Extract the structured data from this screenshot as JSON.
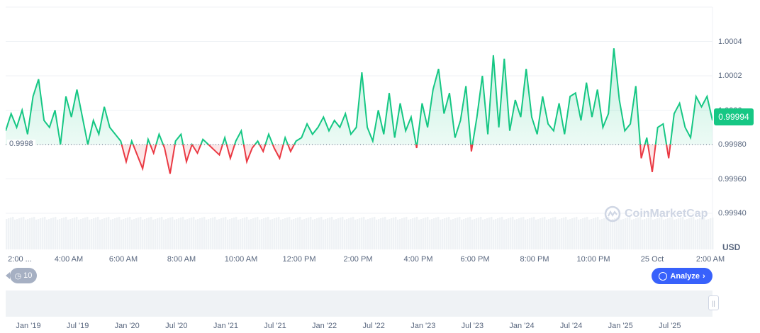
{
  "chart_data": {
    "type": "line",
    "currency": "USD",
    "baseline_price": 0.9998,
    "current_price": "0.99994",
    "ylim": [
      0.99928,
      1.00048
    ],
    "y_ticks": [
      "1.0004",
      "1.0002",
      "1.0000",
      "0.99980",
      "0.99960",
      "0.99940"
    ],
    "baseline_label": "0.9998",
    "x_ticks": [
      "2:00 ...",
      "4:00 AM",
      "6:00 AM",
      "8:00 AM",
      "10:00 AM",
      "12:00 PM",
      "2:00 PM",
      "4:00 PM",
      "6:00 PM",
      "8:00 PM",
      "10:00 PM",
      "25 Oct",
      "2:00 AM"
    ],
    "grid": true,
    "colors": {
      "up": "#16c784",
      "down": "#ea3943",
      "badge": "#16c784"
    },
    "values": [
      0.99988,
      0.99998,
      0.9999,
      1.0,
      0.99986,
      1.00008,
      1.00018,
      0.99994,
      0.9999,
      1.0,
      0.9998,
      1.00008,
      0.99996,
      1.00012,
      0.99996,
      0.9998,
      0.99994,
      0.99986,
      1.00002,
      0.9999,
      0.99986,
      0.99982,
      0.9997,
      0.99982,
      0.99974,
      0.99966,
      0.99983,
      0.99975,
      0.99986,
      0.99978,
      0.99963,
      0.99982,
      0.99986,
      0.9997,
      0.9998,
      0.99975,
      0.99983,
      0.9998,
      0.99977,
      0.99974,
      0.99984,
      0.99972,
      0.99982,
      0.99988,
      0.9997,
      0.99978,
      0.99982,
      0.99976,
      0.99986,
      0.99978,
      0.99972,
      0.99984,
      0.99976,
      0.99982,
      0.99984,
      0.99992,
      0.99986,
      0.9999,
      0.99996,
      0.99988,
      0.99994,
      0.9999,
      0.99998,
      0.99986,
      0.9999,
      1.00022,
      0.9999,
      0.99982,
      1.0,
      0.99986,
      1.0001,
      0.99984,
      1.00004,
      0.99988,
      0.99996,
      0.99978,
      1.00004,
      0.9999,
      1.00012,
      1.00024,
      0.99998,
      1.0001,
      0.99984,
      0.99994,
      1.00014,
      0.99976,
      0.99996,
      1.0002,
      0.99986,
      1.00032,
      0.9999,
      1.0003,
      0.99988,
      1.00006,
      0.99996,
      1.00024,
      0.99996,
      0.99986,
      1.00008,
      0.99992,
      0.99988,
      1.00004,
      0.99986,
      1.00008,
      1.0001,
      0.99994,
      1.00016,
      0.99996,
      1.00012,
      0.9999,
      0.99998,
      1.00036,
      1.00006,
      0.99988,
      0.99992,
      1.00014,
      0.99972,
      0.99984,
      0.99964,
      0.9999,
      0.99992,
      0.99972,
      0.99998,
      1.00004,
      0.9999,
      0.99984,
      1.00008,
      1.00002,
      1.00008,
      0.99994
    ]
  },
  "controls": {
    "history_count": "10",
    "analyze_label": "Analyze",
    "analyze_icon": "chart-icon",
    "history_icon": "clock-history-icon"
  },
  "navigator": {
    "labels": [
      "Jan '19",
      "Jul '19",
      "Jan '20",
      "Jul '20",
      "Jan '21",
      "Jul '21",
      "Jan '22",
      "Jul '22",
      "Jan '23",
      "Jul '23",
      "Jan '24",
      "Jul '24",
      "Jan '25",
      "Jul '25"
    ]
  },
  "watermark": "CoinMarketCap"
}
